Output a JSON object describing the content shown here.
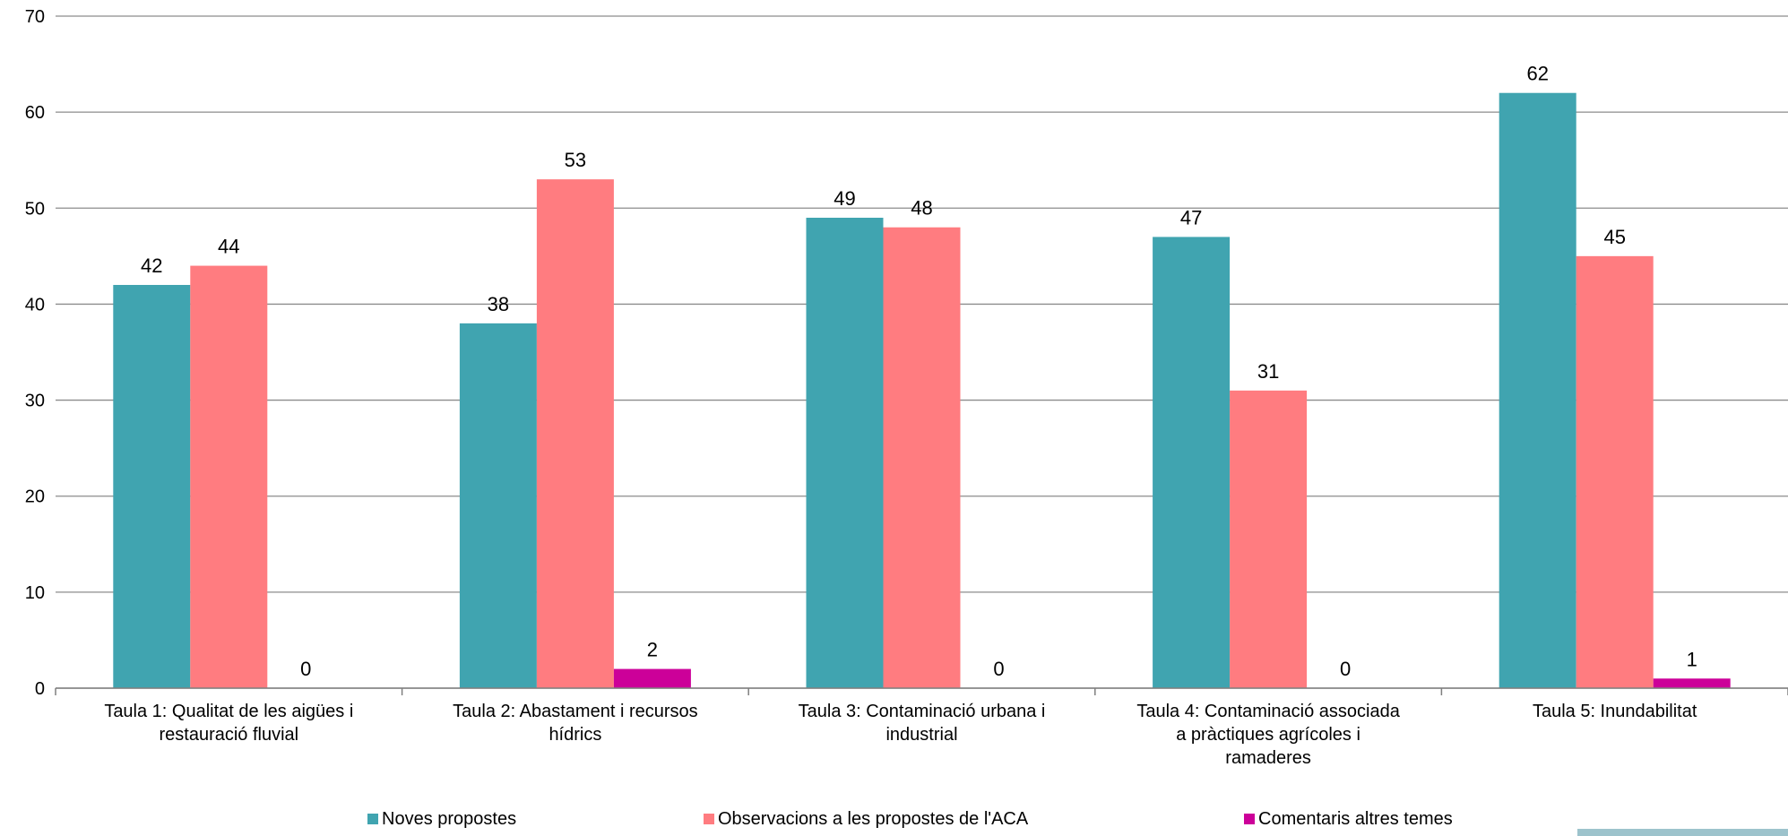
{
  "chart_data": {
    "type": "bar",
    "title": "",
    "xlabel": "",
    "ylabel": "",
    "ylim": [
      0,
      70
    ],
    "yticks": [
      0,
      10,
      20,
      30,
      40,
      50,
      60,
      70
    ],
    "grid": true,
    "legend": "bottom",
    "categories": [
      [
        "Taula 1: Qualitat de les aigües i",
        "restauració fluvial"
      ],
      [
        "Taula 2: Abastament i recursos",
        "hídrics"
      ],
      [
        "Taula 3: Contaminació urbana i",
        "industrial"
      ],
      [
        "Taula 4: Contaminació associada",
        "a pràctiques agrícoles i",
        "ramaderes"
      ],
      [
        "Taula 5: Inundabilitat"
      ]
    ],
    "series": [
      {
        "name": "Noves propostes",
        "color": "#40A4B0",
        "values": [
          42,
          38,
          49,
          47,
          62
        ]
      },
      {
        "name": "Observacions a les propostes de l'ACA",
        "color": "#FF7C80",
        "values": [
          44,
          53,
          48,
          31,
          45
        ]
      },
      {
        "name": "Comentaris altres temes",
        "color": "#CC0099",
        "values": [
          0,
          2,
          0,
          0,
          1
        ]
      }
    ]
  }
}
